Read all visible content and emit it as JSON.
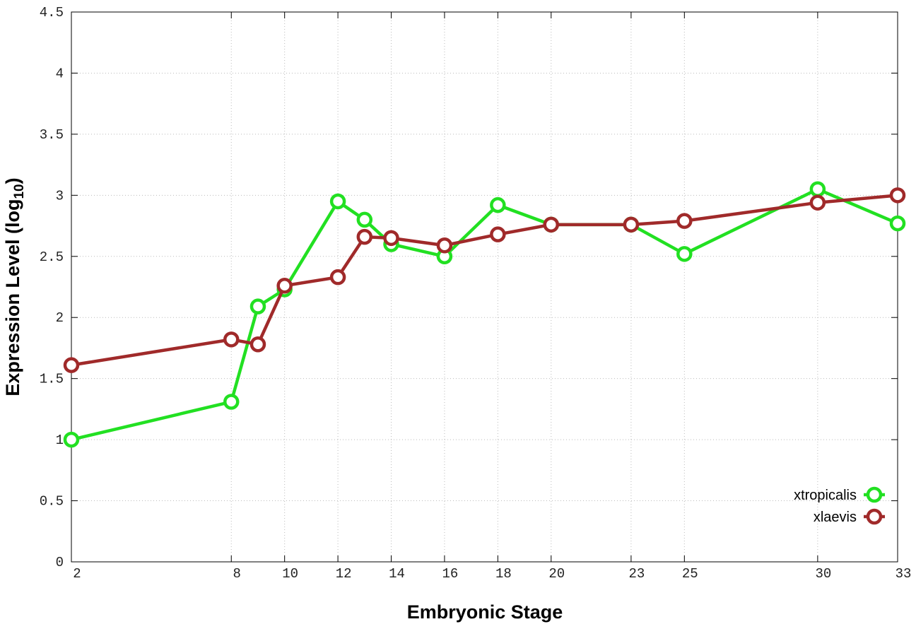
{
  "chart_data": {
    "type": "line",
    "xlabel": "Embryonic Stage",
    "ylabel": {
      "main": "Expression Level (log",
      "sub": "10",
      "end": ")"
    },
    "x": [
      2,
      8,
      9,
      10,
      12,
      13,
      14,
      16,
      18,
      20,
      23,
      25,
      30,
      33
    ],
    "series": [
      {
        "name": "xtropicalis",
        "color": "#22e022",
        "values": [
          1.0,
          1.31,
          2.09,
          2.23,
          2.95,
          2.8,
          2.6,
          2.5,
          2.92,
          2.76,
          2.76,
          2.52,
          3.05,
          2.77
        ]
      },
      {
        "name": "xlaevis",
        "color": "#a02a2a",
        "values": [
          1.61,
          1.82,
          1.78,
          2.26,
          2.33,
          2.66,
          2.65,
          2.59,
          2.68,
          2.76,
          2.76,
          2.79,
          2.94,
          3.0
        ]
      }
    ],
    "xlim": [
      2,
      33
    ],
    "xticks": [
      2,
      8,
      10,
      12,
      14,
      16,
      18,
      20,
      23,
      25,
      30,
      33
    ],
    "ylim": [
      0,
      4.5
    ],
    "yticks": [
      0,
      0.5,
      1,
      1.5,
      2,
      2.5,
      3,
      3.5,
      4,
      4.5
    ],
    "grid": true,
    "legend": "lower-right"
  }
}
